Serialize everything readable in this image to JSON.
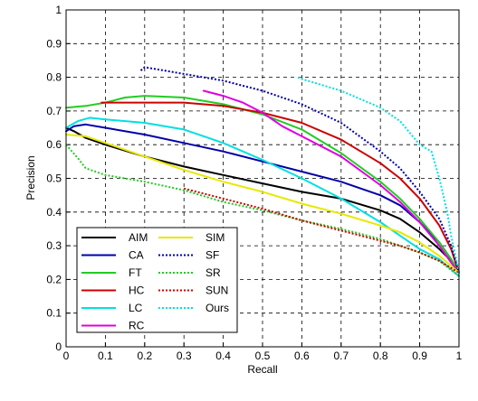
{
  "chart_data": {
    "type": "line",
    "title": "",
    "xlabel": "Recall",
    "ylabel": "Precision",
    "xlim": [
      0,
      1
    ],
    "ylim": [
      0,
      1
    ],
    "xticks": [
      "0",
      "0.1",
      "0.2",
      "0.3",
      "0.4",
      "0.5",
      "0.6",
      "0.7",
      "0.8",
      "0.9",
      "1"
    ],
    "yticks": [
      "0",
      "0.1",
      "0.2",
      "0.3",
      "0.4",
      "0.5",
      "0.6",
      "0.7",
      "0.8",
      "0.9",
      "1"
    ],
    "grid": true,
    "legend_position": "bottom-left",
    "series": [
      {
        "name": "AIM",
        "color": "#000000",
        "style": "solid",
        "points": [
          [
            0.0,
            0.65
          ],
          [
            0.02,
            0.64
          ],
          [
            0.05,
            0.62
          ],
          [
            0.1,
            0.6
          ],
          [
            0.2,
            0.565
          ],
          [
            0.3,
            0.535
          ],
          [
            0.4,
            0.51
          ],
          [
            0.5,
            0.485
          ],
          [
            0.6,
            0.46
          ],
          [
            0.7,
            0.44
          ],
          [
            0.8,
            0.405
          ],
          [
            0.85,
            0.38
          ],
          [
            0.9,
            0.34
          ],
          [
            0.95,
            0.29
          ],
          [
            0.98,
            0.255
          ],
          [
            1.0,
            0.22
          ]
        ]
      },
      {
        "name": "CA",
        "color": "#0000aa",
        "style": "solid",
        "points": [
          [
            0.0,
            0.64
          ],
          [
            0.02,
            0.655
          ],
          [
            0.05,
            0.66
          ],
          [
            0.1,
            0.65
          ],
          [
            0.2,
            0.63
          ],
          [
            0.3,
            0.605
          ],
          [
            0.4,
            0.58
          ],
          [
            0.5,
            0.55
          ],
          [
            0.6,
            0.52
          ],
          [
            0.7,
            0.49
          ],
          [
            0.8,
            0.45
          ],
          [
            0.85,
            0.42
          ],
          [
            0.9,
            0.37
          ],
          [
            0.95,
            0.31
          ],
          [
            0.98,
            0.26
          ],
          [
            1.0,
            0.22
          ]
        ]
      },
      {
        "name": "FT",
        "color": "#22cc22",
        "style": "solid",
        "points": [
          [
            0.0,
            0.71
          ],
          [
            0.05,
            0.715
          ],
          [
            0.1,
            0.725
          ],
          [
            0.15,
            0.74
          ],
          [
            0.2,
            0.745
          ],
          [
            0.3,
            0.74
          ],
          [
            0.4,
            0.72
          ],
          [
            0.5,
            0.69
          ],
          [
            0.6,
            0.645
          ],
          [
            0.7,
            0.575
          ],
          [
            0.8,
            0.49
          ],
          [
            0.85,
            0.44
          ],
          [
            0.9,
            0.38
          ],
          [
            0.95,
            0.31
          ],
          [
            0.98,
            0.26
          ],
          [
            1.0,
            0.22
          ]
        ]
      },
      {
        "name": "HC",
        "color": "#cc0000",
        "style": "solid",
        "points": [
          [
            0.09,
            0.725
          ],
          [
            0.15,
            0.725
          ],
          [
            0.2,
            0.725
          ],
          [
            0.3,
            0.725
          ],
          [
            0.4,
            0.715
          ],
          [
            0.5,
            0.695
          ],
          [
            0.6,
            0.665
          ],
          [
            0.7,
            0.615
          ],
          [
            0.8,
            0.545
          ],
          [
            0.85,
            0.5
          ],
          [
            0.9,
            0.44
          ],
          [
            0.95,
            0.36
          ],
          [
            0.98,
            0.29
          ],
          [
            1.0,
            0.22
          ]
        ]
      },
      {
        "name": "LC",
        "color": "#00e0e0",
        "style": "solid",
        "points": [
          [
            0.0,
            0.65
          ],
          [
            0.03,
            0.67
          ],
          [
            0.06,
            0.68
          ],
          [
            0.1,
            0.675
          ],
          [
            0.2,
            0.665
          ],
          [
            0.3,
            0.645
          ],
          [
            0.4,
            0.605
          ],
          [
            0.5,
            0.555
          ],
          [
            0.6,
            0.5
          ],
          [
            0.7,
            0.44
          ],
          [
            0.8,
            0.37
          ],
          [
            0.85,
            0.33
          ],
          [
            0.9,
            0.29
          ],
          [
            0.95,
            0.26
          ],
          [
            1.0,
            0.21
          ]
        ]
      },
      {
        "name": "RC",
        "color": "#e000e0",
        "style": "solid",
        "points": [
          [
            0.35,
            0.76
          ],
          [
            0.4,
            0.745
          ],
          [
            0.45,
            0.725
          ],
          [
            0.5,
            0.695
          ],
          [
            0.55,
            0.655
          ],
          [
            0.6,
            0.625
          ],
          [
            0.7,
            0.565
          ],
          [
            0.8,
            0.48
          ],
          [
            0.85,
            0.43
          ],
          [
            0.9,
            0.37
          ],
          [
            0.95,
            0.3
          ],
          [
            0.98,
            0.25
          ],
          [
            1.0,
            0.22
          ]
        ]
      },
      {
        "name": "SIM",
        "color": "#e8e800",
        "style": "solid",
        "points": [
          [
            0.0,
            0.63
          ],
          [
            0.05,
            0.625
          ],
          [
            0.1,
            0.605
          ],
          [
            0.2,
            0.565
          ],
          [
            0.3,
            0.525
          ],
          [
            0.4,
            0.49
          ],
          [
            0.5,
            0.46
          ],
          [
            0.6,
            0.425
          ],
          [
            0.7,
            0.395
          ],
          [
            0.8,
            0.36
          ],
          [
            0.85,
            0.34
          ],
          [
            0.9,
            0.31
          ],
          [
            0.95,
            0.27
          ],
          [
            1.0,
            0.22
          ]
        ]
      },
      {
        "name": "SF",
        "color": "#0000aa",
        "style": "dotted",
        "points": [
          [
            0.19,
            0.82
          ],
          [
            0.2,
            0.83
          ],
          [
            0.25,
            0.82
          ],
          [
            0.3,
            0.81
          ],
          [
            0.4,
            0.79
          ],
          [
            0.5,
            0.76
          ],
          [
            0.6,
            0.72
          ],
          [
            0.7,
            0.665
          ],
          [
            0.8,
            0.58
          ],
          [
            0.85,
            0.53
          ],
          [
            0.9,
            0.46
          ],
          [
            0.95,
            0.38
          ],
          [
            0.98,
            0.3
          ],
          [
            1.0,
            0.22
          ]
        ]
      },
      {
        "name": "SR",
        "color": "#22cc22",
        "style": "dotted",
        "points": [
          [
            0.0,
            0.6
          ],
          [
            0.03,
            0.56
          ],
          [
            0.05,
            0.53
          ],
          [
            0.1,
            0.51
          ],
          [
            0.2,
            0.49
          ],
          [
            0.3,
            0.465
          ],
          [
            0.4,
            0.43
          ],
          [
            0.5,
            0.405
          ],
          [
            0.6,
            0.375
          ],
          [
            0.7,
            0.35
          ],
          [
            0.8,
            0.32
          ],
          [
            0.85,
            0.3
          ],
          [
            0.9,
            0.28
          ],
          [
            0.95,
            0.255
          ],
          [
            1.0,
            0.21
          ]
        ]
      },
      {
        "name": "SUN",
        "color": "#cc0000",
        "style": "dotted",
        "points": [
          [
            0.3,
            0.47
          ],
          [
            0.4,
            0.44
          ],
          [
            0.5,
            0.41
          ],
          [
            0.6,
            0.375
          ],
          [
            0.7,
            0.345
          ],
          [
            0.8,
            0.315
          ],
          [
            0.85,
            0.3
          ],
          [
            0.9,
            0.28
          ],
          [
            0.95,
            0.255
          ],
          [
            1.0,
            0.22
          ]
        ]
      },
      {
        "name": "Ours",
        "color": "#00e0e0",
        "style": "dotted",
        "points": [
          [
            0.59,
            0.8
          ],
          [
            0.6,
            0.795
          ],
          [
            0.7,
            0.76
          ],
          [
            0.8,
            0.71
          ],
          [
            0.85,
            0.67
          ],
          [
            0.9,
            0.6
          ],
          [
            0.93,
            0.58
          ],
          [
            0.95,
            0.5
          ],
          [
            0.97,
            0.4
          ],
          [
            0.98,
            0.33
          ],
          [
            1.0,
            0.22
          ]
        ]
      }
    ]
  }
}
